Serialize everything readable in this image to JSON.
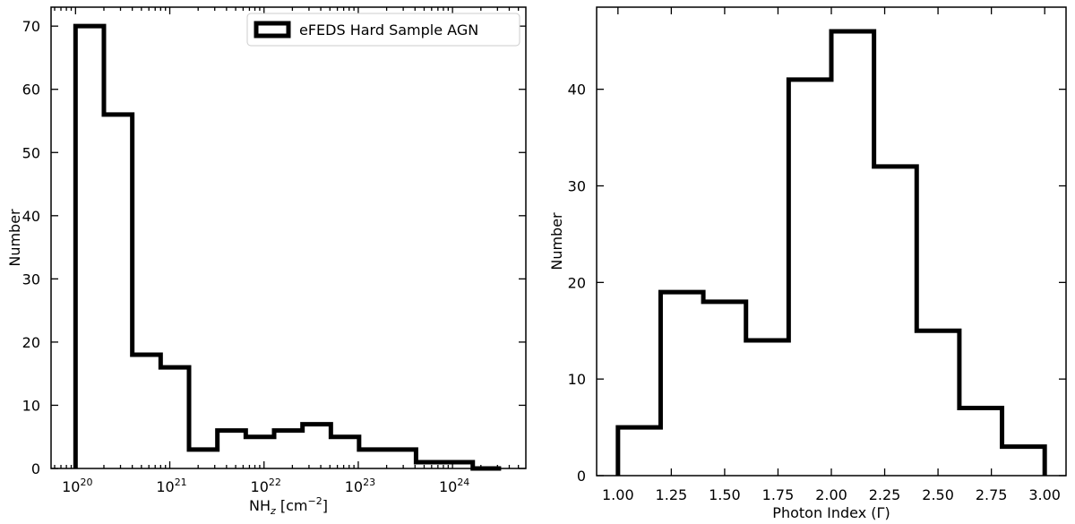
{
  "chart_data": [
    {
      "type": "histogram",
      "xscale": "log",
      "xlabel_base": "NH",
      "xlabel_sub": "z",
      "xlabel_unit_open": " [cm",
      "xlabel_unit_exp": "−2",
      "xlabel_unit_close": "]",
      "ylabel": "Number",
      "xlim": [
        5.5e+19,
        6e+24
      ],
      "ylim": [
        0,
        73
      ],
      "x_ticks": [
        {
          "base": "10",
          "exp": "20",
          "value": 1e+20
        },
        {
          "base": "10",
          "exp": "21",
          "value": 1e+21
        },
        {
          "base": "10",
          "exp": "22",
          "value": 1e+22
        },
        {
          "base": "10",
          "exp": "23",
          "value": 1e+23
        },
        {
          "base": "10",
          "exp": "24",
          "value": 1e+24
        }
      ],
      "y_ticks": [
        "0",
        "10",
        "20",
        "30",
        "40",
        "50",
        "60",
        "70"
      ],
      "bin_edges": [
        1e+20,
        2e+20,
        4e+20,
        8e+20,
        1.6e+21,
        3.2e+21,
        6.4e+21,
        1.28e+22,
        2.56e+22,
        5.12e+22,
        1.02e+23,
        2.05e+23,
        4.1e+23,
        8.2e+23,
        1.64e+24,
        3.28e+24
      ],
      "values": [
        70,
        56,
        18,
        16,
        3,
        6,
        5,
        6,
        7,
        5,
        3,
        3,
        1,
        1,
        0
      ],
      "legend": {
        "label": "eFEDS Hard Sample AGN",
        "position": "upper right"
      },
      "grid": false
    },
    {
      "type": "histogram",
      "xscale": "linear",
      "xlabel": "Photon Index (Γ)",
      "ylabel": "Number",
      "xlim": [
        0.9,
        3.1
      ],
      "ylim": [
        0,
        48.5
      ],
      "x_ticks": [
        "1.00",
        "1.25",
        "1.50",
        "1.75",
        "2.00",
        "2.25",
        "2.50",
        "2.75",
        "3.00"
      ],
      "y_ticks": [
        "0",
        "10",
        "20",
        "30",
        "40"
      ],
      "bin_edges": [
        1.0,
        1.2,
        1.4,
        1.6,
        1.8,
        2.0,
        2.2,
        2.4,
        2.6,
        2.8,
        3.0
      ],
      "values": [
        5,
        19,
        18,
        14,
        41,
        46,
        32,
        15,
        7,
        3
      ],
      "grid": false
    }
  ]
}
